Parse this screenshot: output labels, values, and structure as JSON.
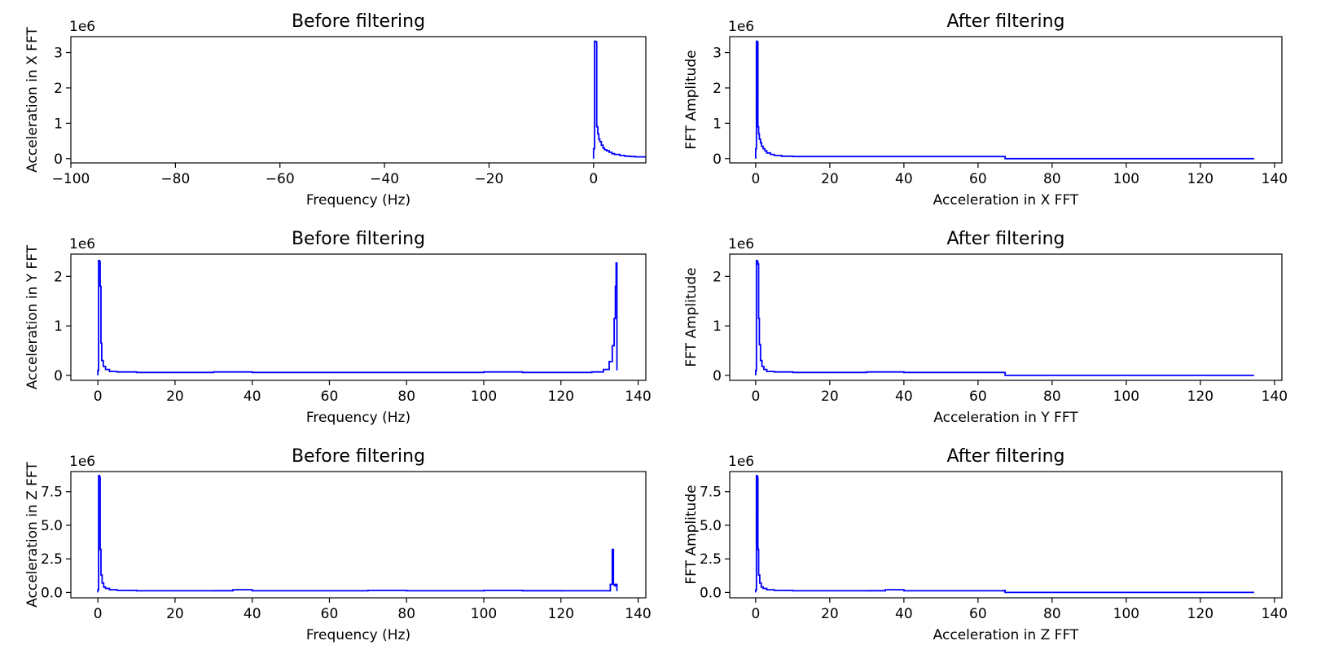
{
  "chart_data": [
    {
      "type": "line",
      "title": "Before filtering",
      "xlabel": "Frequency (Hz)",
      "ylabel": "Acceleration in X FFT",
      "y_multiplier": "1e6",
      "xlim": [
        -100,
        10
      ],
      "ylim": [
        -0.12,
        3.45
      ],
      "xticks": [
        -100,
        -80,
        -60,
        -40,
        -20,
        0
      ],
      "yticks": [
        0,
        1,
        2,
        3
      ],
      "series": [
        {
          "color": "#0000ff",
          "x": [
            0,
            0.2,
            0.4,
            0.6,
            0.8,
            1.0,
            1.2,
            1.5,
            1.8,
            2.1,
            2.5,
            3,
            3.5,
            4,
            5,
            6,
            7,
            8,
            9,
            10
          ],
          "y": [
            0.28,
            3.32,
            3.3,
            0.9,
            0.7,
            0.55,
            0.48,
            0.38,
            0.3,
            0.25,
            0.22,
            0.18,
            0.14,
            0.12,
            0.09,
            0.07,
            0.06,
            0.05,
            0.05,
            0.05
          ]
        }
      ]
    },
    {
      "type": "line",
      "title": "After filtering",
      "xlabel": "Acceleration in X FFT",
      "ylabel": "FFT Amplitude",
      "y_multiplier": "1e6",
      "xlim": [
        -7,
        142
      ],
      "ylim": [
        -0.12,
        3.45
      ],
      "xticks": [
        0,
        20,
        40,
        60,
        80,
        100,
        120,
        140
      ],
      "yticks": [
        0,
        1,
        2,
        3
      ],
      "series": [
        {
          "color": "#0000ff",
          "x": [
            0,
            0.2,
            0.4,
            0.6,
            0.8,
            1.0,
            1.3,
            1.6,
            2.0,
            2.5,
            3,
            4,
            5,
            7,
            10,
            20,
            30,
            40,
            50,
            60,
            67,
            67.3,
            100,
            134.5
          ],
          "y": [
            0.28,
            3.32,
            3.3,
            0.9,
            0.7,
            0.55,
            0.45,
            0.35,
            0.28,
            0.22,
            0.16,
            0.12,
            0.09,
            0.07,
            0.06,
            0.06,
            0.06,
            0.06,
            0.06,
            0.06,
            0.06,
            0.0,
            0.0,
            0.0
          ]
        }
      ]
    },
    {
      "type": "line",
      "title": "Before filtering",
      "xlabel": "Frequency (Hz)",
      "ylabel": "Acceleration in Y FFT",
      "y_multiplier": "1e6",
      "xlim": [
        -7,
        142
      ],
      "ylim": [
        -0.1,
        2.45
      ],
      "xticks": [
        0,
        20,
        40,
        60,
        80,
        100,
        120,
        140
      ],
      "yticks": [
        0,
        1,
        2
      ],
      "series": [
        {
          "color": "#0000ff",
          "x": [
            0,
            0.2,
            0.4,
            0.6,
            0.8,
            1.0,
            1.4,
            2.0,
            3,
            5,
            10,
            20,
            30,
            40,
            50,
            60,
            70,
            80,
            90,
            100,
            110,
            120,
            128,
            131,
            132.5,
            133.3,
            133.8,
            134.1,
            134.3,
            134.5
          ],
          "y": [
            0.1,
            2.32,
            2.3,
            1.8,
            0.65,
            0.3,
            0.18,
            0.12,
            0.08,
            0.07,
            0.06,
            0.06,
            0.07,
            0.06,
            0.06,
            0.06,
            0.06,
            0.06,
            0.06,
            0.07,
            0.06,
            0.06,
            0.07,
            0.12,
            0.28,
            0.6,
            1.15,
            1.8,
            2.27,
            0.1
          ]
        }
      ]
    },
    {
      "type": "line",
      "title": "After filtering",
      "xlabel": "Acceleration in Y FFT",
      "ylabel": "FFT Amplitude",
      "y_multiplier": "1e6",
      "xlim": [
        -7,
        142
      ],
      "ylim": [
        -0.1,
        2.45
      ],
      "xticks": [
        0,
        20,
        40,
        60,
        80,
        100,
        120,
        140
      ],
      "yticks": [
        0,
        1,
        2
      ],
      "series": [
        {
          "color": "#0000ff",
          "x": [
            0,
            0.2,
            0.4,
            0.6,
            0.8,
            1.0,
            1.3,
            1.7,
            2.2,
            3,
            5,
            10,
            20,
            30,
            40,
            50,
            60,
            67,
            67.3,
            100,
            134.5
          ],
          "y": [
            0.1,
            2.32,
            2.3,
            2.25,
            1.15,
            0.62,
            0.3,
            0.18,
            0.12,
            0.08,
            0.07,
            0.06,
            0.06,
            0.07,
            0.06,
            0.06,
            0.06,
            0.06,
            0.0,
            0.0,
            0.0
          ]
        }
      ]
    },
    {
      "type": "line",
      "title": "Before filtering",
      "xlabel": "Frequency (Hz)",
      "ylabel": "Acceleration in Z FFT",
      "y_multiplier": "1e6",
      "xlim": [
        -7,
        142
      ],
      "ylim": [
        -0.4,
        9.0
      ],
      "xticks": [
        0,
        20,
        40,
        60,
        80,
        100,
        120,
        140
      ],
      "yticks": [
        0.0,
        2.5,
        5.0,
        7.5
      ],
      "series": [
        {
          "color": "#0000ff",
          "x": [
            0,
            0.2,
            0.4,
            0.6,
            0.8,
            1.1,
            1.5,
            2.0,
            3,
            5,
            10,
            20,
            30,
            35,
            40,
            50,
            60,
            70,
            80,
            90,
            100,
            110,
            120,
            130,
            132.8,
            133.3,
            133.6,
            133.9,
            134.2,
            134.5
          ],
          "y": [
            0.2,
            8.7,
            8.6,
            3.2,
            1.3,
            0.7,
            0.4,
            0.3,
            0.2,
            0.15,
            0.12,
            0.12,
            0.13,
            0.2,
            0.12,
            0.12,
            0.12,
            0.15,
            0.12,
            0.12,
            0.15,
            0.13,
            0.12,
            0.12,
            0.6,
            3.2,
            0.6,
            0.5,
            0.6,
            0.1
          ]
        }
      ]
    },
    {
      "type": "line",
      "title": "After filtering",
      "xlabel": "Acceleration in Z FFT",
      "ylabel": "FFT Amplitude",
      "y_multiplier": "1e6",
      "xlim": [
        -7,
        142
      ],
      "ylim": [
        -0.4,
        9.0
      ],
      "xticks": [
        0,
        20,
        40,
        60,
        80,
        100,
        120,
        140
      ],
      "yticks": [
        0.0,
        2.5,
        5.0,
        7.5
      ],
      "series": [
        {
          "color": "#0000ff",
          "x": [
            0,
            0.2,
            0.4,
            0.6,
            0.8,
            1.1,
            1.5,
            2.0,
            3,
            5,
            10,
            20,
            30,
            35,
            40,
            50,
            60,
            67,
            67.3,
            100,
            134.5
          ],
          "y": [
            0.2,
            8.7,
            8.6,
            3.2,
            1.3,
            0.7,
            0.4,
            0.3,
            0.2,
            0.15,
            0.12,
            0.12,
            0.13,
            0.2,
            0.12,
            0.12,
            0.12,
            0.15,
            0.0,
            0.0,
            0.0
          ]
        }
      ]
    }
  ]
}
